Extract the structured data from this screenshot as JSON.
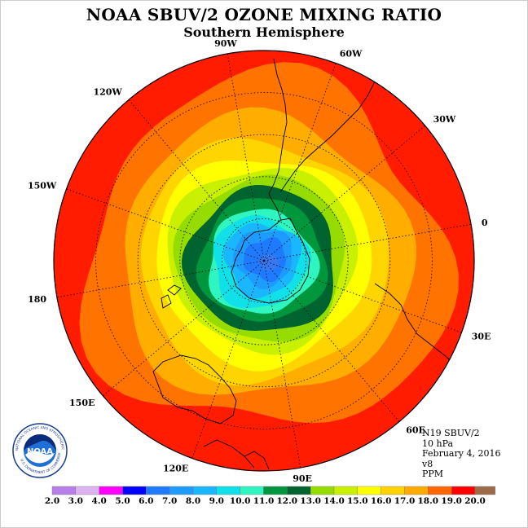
{
  "header": {
    "title": "NOAA SBUV/2 OZONE MIXING RATIO",
    "subtitle": "Southern Hemisphere"
  },
  "info": {
    "satellite": "N19 SBUV/2",
    "level": "10 hPa",
    "date": "February 4, 2016",
    "version": "v8",
    "units": "PPM"
  },
  "longitude_labels": [
    "0",
    "30E",
    "60E",
    "90E",
    "120E",
    "150E",
    "180",
    "150W",
    "120W",
    "90W",
    "60W",
    "30W"
  ],
  "colorbar": {
    "ticks": [
      "2.0",
      "3.0",
      "4.0",
      "5.0",
      "6.0",
      "7.0",
      "8.0",
      "9.0",
      "10.0",
      "11.0",
      "12.0",
      "13.0",
      "14.0",
      "15.0",
      "16.0",
      "17.0",
      "18.0",
      "19.0",
      "20.0"
    ],
    "colors": [
      "#b87fe8",
      "#dcb2f0",
      "#ff00ff",
      "#0000ff",
      "#1e7bff",
      "#1e9bff",
      "#1ab6ff",
      "#10e0e8",
      "#2ff5c0",
      "#009640",
      "#006430",
      "#96dc00",
      "#c8f000",
      "#ffff00",
      "#ffd200",
      "#ffaa00",
      "#ff6600",
      "#ff0000",
      "#9b6b4a"
    ]
  },
  "map": {
    "background_color": "#ff1c00",
    "ring_colors": [
      "#ff7300",
      "#ffae00",
      "#ffd500",
      "#ffff00",
      "#c8f000",
      "#96dc00",
      "#006430",
      "#00963c",
      "#2ff5c0",
      "#10e0e8",
      "#1ab6ff",
      "#1e9bff",
      "#1e7bff"
    ],
    "peak_color": "#3878f0"
  },
  "logo": {
    "text": "NOAA",
    "ring_text": "NATIONAL OCEANIC AND ATMOSPHERIC ADMINISTRATION",
    "ring_text_bottom": "U.S. DEPARTMENT OF COMMERCE"
  }
}
